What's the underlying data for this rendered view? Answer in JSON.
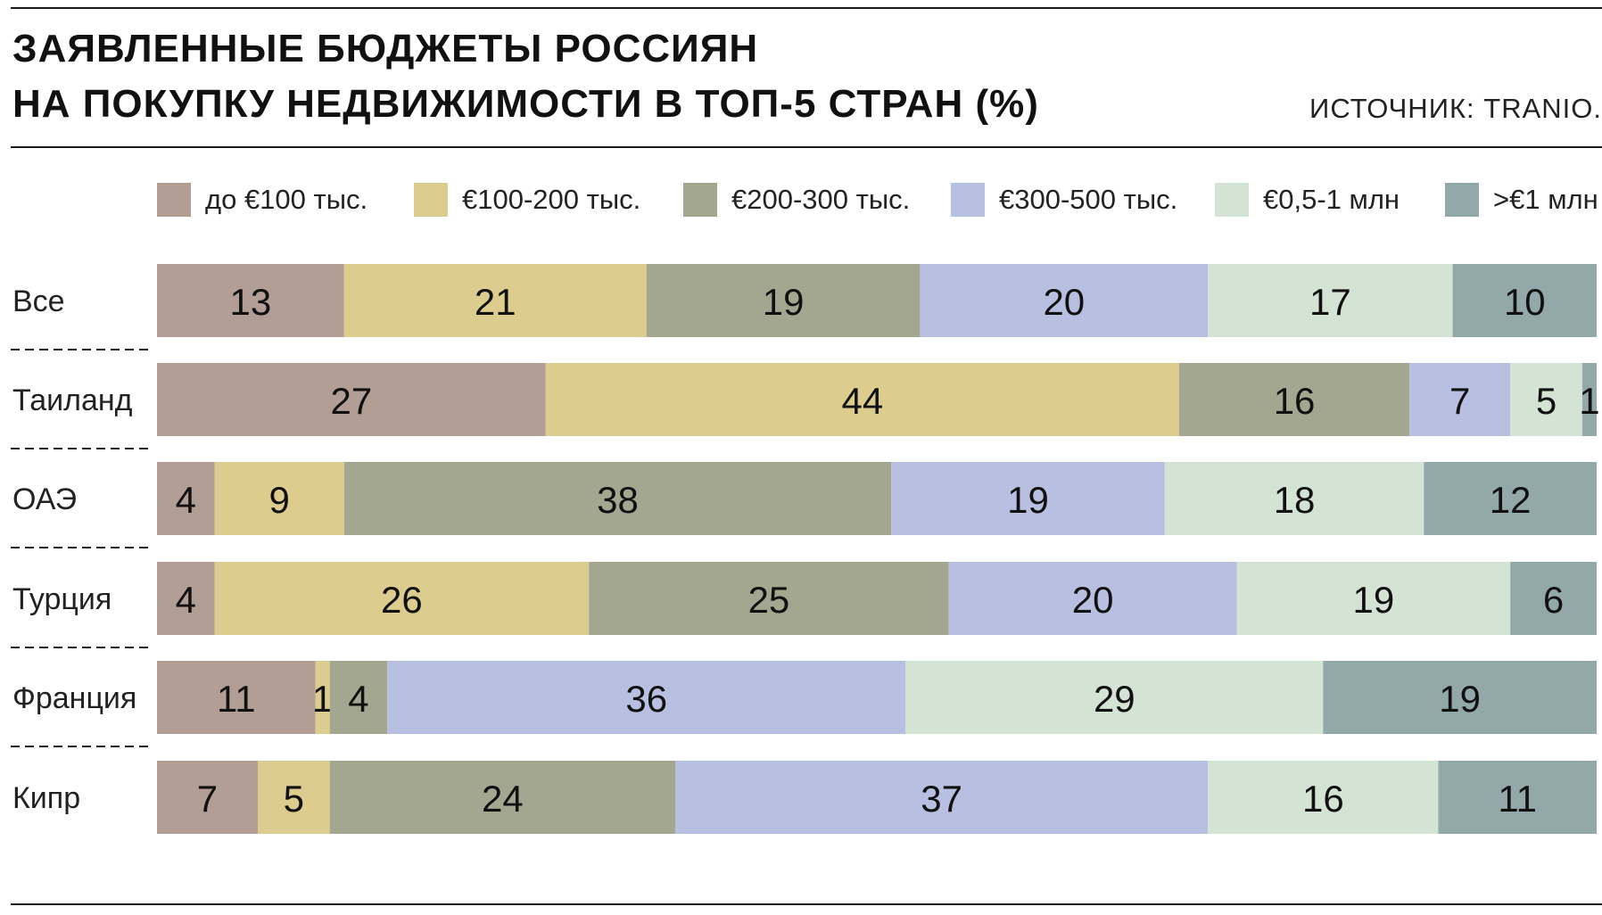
{
  "title_line1": "ЗАЯВЛЕННЫЕ БЮДЖЕТЫ РОССИЯН",
  "title_line2": "НА ПОКУПКУ НЕДВИЖИМОСТИ В ТОП-5 СТРАН (%)",
  "source": "ИСТОЧНИК: TRANIO.",
  "chart_data": {
    "type": "bar",
    "orientation": "horizontal",
    "stacked": true,
    "categories": [
      "Все",
      "Таиланд",
      "ОАЭ",
      "Турция",
      "Франция",
      "Кипр"
    ],
    "series": [
      {
        "name": "до €100 тыс.",
        "color": "#b39e95",
        "values": [
          13,
          27,
          4,
          4,
          11,
          7
        ]
      },
      {
        "name": "€100-200 тыс.",
        "color": "#dccd8e",
        "values": [
          21,
          44,
          9,
          26,
          1,
          5
        ]
      },
      {
        "name": "€200-300 тыс.",
        "color": "#a4a78f",
        "values": [
          19,
          16,
          38,
          25,
          4,
          24
        ]
      },
      {
        "name": "€300-500 тыс.",
        "color": "#b7c0e1",
        "values": [
          20,
          7,
          19,
          20,
          36,
          37
        ]
      },
      {
        "name": "€0,5-1 млн",
        "color": "#d3e3d4",
        "values": [
          17,
          5,
          18,
          19,
          29,
          16
        ]
      },
      {
        "name": ">€1 млн",
        "color": "#93a9a9",
        "values": [
          10,
          1,
          12,
          6,
          19,
          11
        ]
      }
    ],
    "legend_position": "top",
    "value_labels": true,
    "grid": false
  }
}
